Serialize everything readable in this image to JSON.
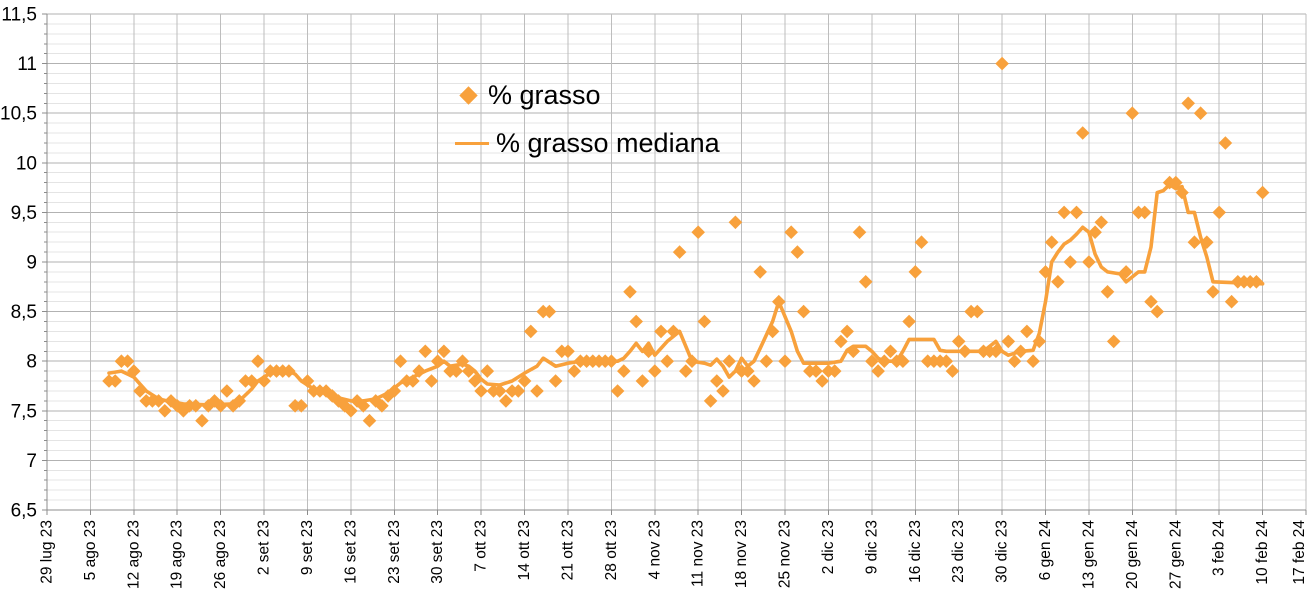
{
  "chart_data": {
    "type": "scatter",
    "title": "",
    "xlabel": "",
    "ylabel": "",
    "grid": true,
    "legend_position": "inside-top-left-center",
    "x_axis": {
      "total_days": 203,
      "tick_interval_days": 7,
      "tick_labels": [
        "29 lug 23",
        "5 ago 23",
        "12 ago 23",
        "19 ago 23",
        "26 ago 23",
        "2 set 23",
        "9 set 23",
        "16 set 23",
        "23 set 23",
        "30 set 23",
        "7 ott 23",
        "14 ott 23",
        "21 ott 23",
        "28 ott 23",
        "4 nov 23",
        "11 nov 23",
        "18 nov 23",
        "25 nov 23",
        "2 dic 23",
        "9 dic 23",
        "16 dic 23",
        "23 dic 23",
        "30 dic 23",
        "6 gen 24",
        "13 gen 24",
        "20 gen 24",
        "27 gen 24",
        "3 feb 24",
        "10 feb 24",
        "17 feb 24"
      ]
    },
    "y_axis": {
      "min": 6.5,
      "max": 11.5,
      "major_step": 0.5,
      "minor_step": 0.1,
      "tick_labels": [
        "11,5",
        "11",
        "10,5",
        "10",
        "9,5",
        "9",
        "8,5",
        "8",
        "7,5",
        "7",
        "6,5"
      ]
    },
    "legend": [
      {
        "label": "% grasso",
        "marker": "diamond"
      },
      {
        "label": "% grasso mediana",
        "marker": "line"
      }
    ],
    "series": [
      {
        "name": "% grasso",
        "type": "scatter",
        "marker": "diamond",
        "points": [
          [
            10,
            7.8
          ],
          [
            11,
            7.8
          ],
          [
            12,
            8.0
          ],
          [
            13,
            8.0
          ],
          [
            14,
            7.9
          ],
          [
            15,
            7.7
          ],
          [
            16,
            7.6
          ],
          [
            17,
            7.6
          ],
          [
            18,
            7.6
          ],
          [
            19,
            7.5
          ],
          [
            20,
            7.6
          ],
          [
            21,
            7.55
          ],
          [
            22,
            7.5
          ],
          [
            23,
            7.55
          ],
          [
            24,
            7.55
          ],
          [
            25,
            7.4
          ],
          [
            26,
            7.55
          ],
          [
            27,
            7.6
          ],
          [
            28,
            7.55
          ],
          [
            29,
            7.7
          ],
          [
            30,
            7.55
          ],
          [
            31,
            7.6
          ],
          [
            32,
            7.8
          ],
          [
            33,
            7.8
          ],
          [
            34,
            8.0
          ],
          [
            35,
            7.8
          ],
          [
            36,
            7.9
          ],
          [
            37,
            7.9
          ],
          [
            38,
            7.9
          ],
          [
            39,
            7.9
          ],
          [
            40,
            7.55
          ],
          [
            41,
            7.55
          ],
          [
            42,
            7.8
          ],
          [
            43,
            7.7
          ],
          [
            44,
            7.7
          ],
          [
            45,
            7.7
          ],
          [
            46,
            7.65
          ],
          [
            47,
            7.6
          ],
          [
            48,
            7.55
          ],
          [
            49,
            7.5
          ],
          [
            50,
            7.6
          ],
          [
            51,
            7.55
          ],
          [
            52,
            7.4
          ],
          [
            53,
            7.6
          ],
          [
            54,
            7.55
          ],
          [
            55,
            7.65
          ],
          [
            56,
            7.7
          ],
          [
            57,
            8.0
          ],
          [
            58,
            7.8
          ],
          [
            59,
            7.8
          ],
          [
            60,
            7.9
          ],
          [
            61,
            8.1
          ],
          [
            62,
            7.8
          ],
          [
            63,
            8.0
          ],
          [
            64,
            8.1
          ],
          [
            65,
            7.9
          ],
          [
            66,
            7.9
          ],
          [
            67,
            8.0
          ],
          [
            68,
            7.9
          ],
          [
            69,
            7.8
          ],
          [
            70,
            7.7
          ],
          [
            71,
            7.9
          ],
          [
            72,
            7.7
          ],
          [
            73,
            7.7
          ],
          [
            74,
            7.6
          ],
          [
            75,
            7.7
          ],
          [
            76,
            7.7
          ],
          [
            77,
            7.8
          ],
          [
            78,
            8.3
          ],
          [
            79,
            7.7
          ],
          [
            80,
            8.5
          ],
          [
            81,
            8.5
          ],
          [
            82,
            7.8
          ],
          [
            83,
            8.1
          ],
          [
            84,
            8.1
          ],
          [
            85,
            7.9
          ],
          [
            86,
            8.0
          ],
          [
            87,
            8.0
          ],
          [
            88,
            8.0
          ],
          [
            89,
            8.0
          ],
          [
            90,
            8.0
          ],
          [
            91,
            8.0
          ],
          [
            92,
            7.7
          ],
          [
            93,
            7.9
          ],
          [
            94,
            8.7
          ],
          [
            95,
            8.4
          ],
          [
            96,
            7.8
          ],
          [
            97,
            8.1
          ],
          [
            98,
            7.9
          ],
          [
            99,
            8.3
          ],
          [
            100,
            8.0
          ],
          [
            101,
            8.3
          ],
          [
            102,
            9.1
          ],
          [
            103,
            7.9
          ],
          [
            104,
            8.0
          ],
          [
            105,
            9.3
          ],
          [
            106,
            8.4
          ],
          [
            107,
            7.6
          ],
          [
            108,
            7.8
          ],
          [
            109,
            7.7
          ],
          [
            110,
            8.0
          ],
          [
            111,
            9.4
          ],
          [
            112,
            7.9
          ],
          [
            113,
            7.9
          ],
          [
            114,
            7.8
          ],
          [
            115,
            8.9
          ],
          [
            116,
            8.0
          ],
          [
            117,
            8.3
          ],
          [
            118,
            8.6
          ],
          [
            119,
            8.0
          ],
          [
            120,
            9.3
          ],
          [
            121,
            9.1
          ],
          [
            122,
            8.5
          ],
          [
            123,
            7.9
          ],
          [
            124,
            7.9
          ],
          [
            125,
            7.8
          ],
          [
            126,
            7.9
          ],
          [
            127,
            7.9
          ],
          [
            128,
            8.2
          ],
          [
            129,
            8.3
          ],
          [
            130,
            8.1
          ],
          [
            131,
            9.3
          ],
          [
            132,
            8.8
          ],
          [
            133,
            8.0
          ],
          [
            134,
            7.9
          ],
          [
            135,
            8.0
          ],
          [
            136,
            8.1
          ],
          [
            137,
            8.0
          ],
          [
            138,
            8.0
          ],
          [
            139,
            8.4
          ],
          [
            140,
            8.9
          ],
          [
            141,
            9.2
          ],
          [
            142,
            8.0
          ],
          [
            143,
            8.0
          ],
          [
            144,
            8.0
          ],
          [
            145,
            8.0
          ],
          [
            146,
            7.9
          ],
          [
            147,
            8.2
          ],
          [
            148,
            8.1
          ],
          [
            149,
            8.5
          ],
          [
            150,
            8.5
          ],
          [
            151,
            8.1
          ],
          [
            152,
            8.1
          ],
          [
            153,
            8.1
          ],
          [
            154,
            11.0
          ],
          [
            155,
            8.2
          ],
          [
            156,
            8.0
          ],
          [
            157,
            8.1
          ],
          [
            158,
            8.3
          ],
          [
            159,
            8.0
          ],
          [
            160,
            8.2
          ],
          [
            161,
            8.9
          ],
          [
            162,
            9.2
          ],
          [
            163,
            8.8
          ],
          [
            164,
            9.5
          ],
          [
            165,
            9.0
          ],
          [
            166,
            9.5
          ],
          [
            167,
            10.3
          ],
          [
            168,
            9.0
          ],
          [
            169,
            9.3
          ],
          [
            170,
            9.4
          ],
          [
            171,
            8.7
          ],
          [
            172,
            8.2
          ],
          [
            174,
            8.9
          ],
          [
            175,
            10.5
          ],
          [
            176,
            9.5
          ],
          [
            177,
            9.5
          ],
          [
            178,
            8.6
          ],
          [
            179,
            8.5
          ],
          [
            181,
            9.8
          ],
          [
            182,
            9.8
          ],
          [
            183,
            9.7
          ],
          [
            184,
            10.6
          ],
          [
            185,
            9.2
          ],
          [
            186,
            10.5
          ],
          [
            187,
            9.2
          ],
          [
            188,
            8.7
          ],
          [
            189,
            9.5
          ],
          [
            190,
            10.2
          ],
          [
            191,
            8.6
          ],
          [
            192,
            8.8
          ],
          [
            193,
            8.8
          ],
          [
            194,
            8.8
          ],
          [
            195,
            8.8
          ],
          [
            196,
            9.7
          ]
        ]
      },
      {
        "name": "% grasso mediana",
        "type": "line",
        "points": [
          [
            10,
            7.88
          ],
          [
            12,
            7.9
          ],
          [
            14,
            7.84
          ],
          [
            16,
            7.7
          ],
          [
            18,
            7.62
          ],
          [
            20,
            7.59
          ],
          [
            22,
            7.57
          ],
          [
            26,
            7.56
          ],
          [
            30,
            7.57
          ],
          [
            31,
            7.6
          ],
          [
            33,
            7.72
          ],
          [
            34,
            7.8
          ],
          [
            36,
            7.88
          ],
          [
            39,
            7.9
          ],
          [
            40,
            7.87
          ],
          [
            41,
            7.8
          ],
          [
            43,
            7.72
          ],
          [
            45,
            7.68
          ],
          [
            47,
            7.63
          ],
          [
            49,
            7.6
          ],
          [
            51,
            7.6
          ],
          [
            53,
            7.62
          ],
          [
            55,
            7.68
          ],
          [
            57,
            7.78
          ],
          [
            59,
            7.84
          ],
          [
            61,
            7.9
          ],
          [
            63,
            7.95
          ],
          [
            64,
            8.0
          ],
          [
            65,
            7.95
          ],
          [
            67,
            7.97
          ],
          [
            68,
            7.95
          ],
          [
            69,
            7.9
          ],
          [
            70,
            7.82
          ],
          [
            71,
            7.77
          ],
          [
            73,
            7.76
          ],
          [
            75,
            7.8
          ],
          [
            77,
            7.88
          ],
          [
            79,
            7.95
          ],
          [
            80,
            8.03
          ],
          [
            82,
            7.95
          ],
          [
            84,
            7.98
          ],
          [
            86,
            8.0
          ],
          [
            90,
            8.0
          ],
          [
            92,
            8.0
          ],
          [
            93,
            8.03
          ],
          [
            94,
            8.1
          ],
          [
            95,
            8.18
          ],
          [
            96,
            8.1
          ],
          [
            97,
            8.18
          ],
          [
            98,
            8.06
          ],
          [
            100,
            8.2
          ],
          [
            102,
            8.3
          ],
          [
            103,
            8.15
          ],
          [
            104,
            8.0
          ],
          [
            106,
            7.98
          ],
          [
            107,
            7.96
          ],
          [
            108,
            8.02
          ],
          [
            109,
            7.95
          ],
          [
            110,
            7.84
          ],
          [
            111,
            7.9
          ],
          [
            112,
            8.03
          ],
          [
            113,
            7.95
          ],
          [
            114,
            8.0
          ],
          [
            115,
            8.13
          ],
          [
            117,
            8.4
          ],
          [
            118,
            8.6
          ],
          [
            119,
            8.45
          ],
          [
            120,
            8.3
          ],
          [
            121,
            8.1
          ],
          [
            122,
            7.98
          ],
          [
            126,
            7.98
          ],
          [
            128,
            8.0
          ],
          [
            129,
            8.11
          ],
          [
            130,
            8.15
          ],
          [
            132,
            8.15
          ],
          [
            133,
            8.1
          ],
          [
            134,
            8.03
          ],
          [
            135,
            8.0
          ],
          [
            137,
            8.0
          ],
          [
            138,
            8.1
          ],
          [
            139,
            8.22
          ],
          [
            143,
            8.22
          ],
          [
            144,
            8.11
          ],
          [
            145,
            8.1
          ],
          [
            151,
            8.1
          ],
          [
            153,
            8.2
          ],
          [
            154,
            8.1
          ],
          [
            155,
            8.06
          ],
          [
            157,
            8.1
          ],
          [
            159,
            8.11
          ],
          [
            160,
            8.28
          ],
          [
            161,
            8.6
          ],
          [
            162,
            9.0
          ],
          [
            163,
            9.1
          ],
          [
            164,
            9.18
          ],
          [
            165,
            9.22
          ],
          [
            166,
            9.28
          ],
          [
            167,
            9.35
          ],
          [
            168,
            9.3
          ],
          [
            169,
            9.08
          ],
          [
            170,
            8.95
          ],
          [
            171,
            8.9
          ],
          [
            173,
            8.88
          ],
          [
            174,
            8.8
          ],
          [
            175,
            8.85
          ],
          [
            176,
            8.9
          ],
          [
            177,
            8.9
          ],
          [
            178,
            9.15
          ],
          [
            179,
            9.7
          ],
          [
            180,
            9.72
          ],
          [
            181,
            9.78
          ],
          [
            182,
            9.74
          ],
          [
            183,
            9.76
          ],
          [
            184,
            9.5
          ],
          [
            185,
            9.5
          ],
          [
            186,
            9.25
          ],
          [
            187,
            9.05
          ],
          [
            188,
            8.8
          ],
          [
            196,
            8.78
          ]
        ]
      }
    ],
    "colors": {
      "series_orange": "#F8A13C",
      "major_gridline": "#b2b2b2",
      "minor_gridline": "#e4e4e4",
      "vertical_gridline": "#bdbdbd",
      "axis": "#8c8c8c",
      "label_text": "#000000",
      "background": "#ffffff"
    }
  }
}
